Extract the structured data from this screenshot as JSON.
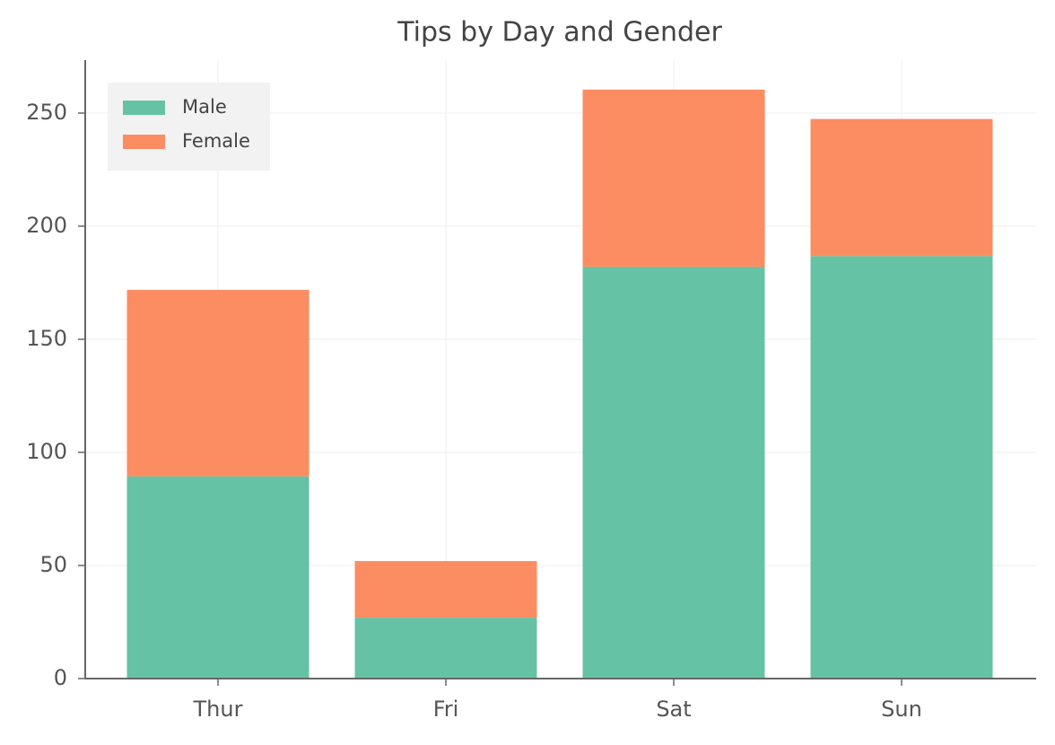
{
  "chart_data": {
    "type": "stacked_bar",
    "title": "Tips by Day and Gender",
    "categories": [
      "Thur",
      "Fri",
      "Sat",
      "Sun"
    ],
    "series": [
      {
        "name": "Male",
        "color": "#66c2a5",
        "values": [
          89.41,
          26.93,
          181.95,
          186.78
        ]
      },
      {
        "name": "Female",
        "color": "#fc8d62",
        "values": [
          82.42,
          25.03,
          78.45,
          60.61
        ]
      }
    ],
    "ylim": [
      0,
      273.4
    ],
    "yticks": [
      0,
      50,
      100,
      150,
      200,
      250
    ],
    "grid": true,
    "legend": "upper left"
  }
}
